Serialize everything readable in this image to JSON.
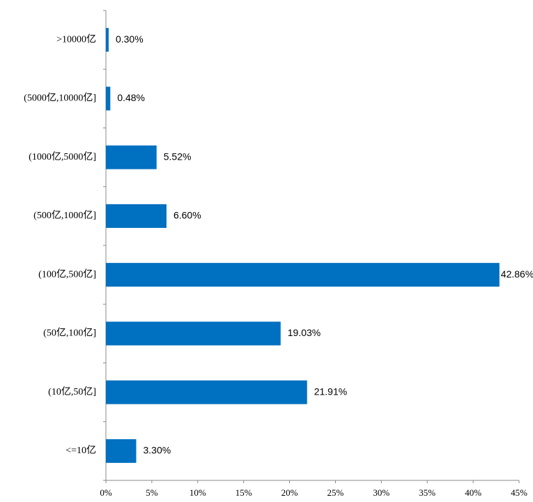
{
  "chart_data": {
    "type": "bar",
    "orientation": "horizontal",
    "categories": [
      ">10000亿",
      "(5000亿,10000亿]",
      "(1000亿,5000亿]",
      "(500亿,1000亿]",
      "(100亿,500亿]",
      "(50亿,100亿]",
      "(10亿,50亿]",
      "<=10亿"
    ],
    "values": [
      0.3,
      0.48,
      5.52,
      6.6,
      42.86,
      19.03,
      21.91,
      3.3
    ],
    "value_labels": [
      "0.30%",
      "0.48%",
      "5.52%",
      "6.60%",
      "42.86%",
      "19.03%",
      "21.91%",
      "3.30%"
    ],
    "color": "#0070c0",
    "xlim": [
      0,
      45
    ],
    "xticks": [
      {
        "value": 0,
        "label": "0%"
      },
      {
        "value": 5,
        "label": "5%"
      },
      {
        "value": 10,
        "label": "10%"
      },
      {
        "value": 15,
        "label": "15%"
      },
      {
        "value": 20,
        "label": "20%"
      },
      {
        "value": 25,
        "label": "25%"
      },
      {
        "value": 30,
        "label": "30%"
      },
      {
        "value": 35,
        "label": "35%"
      },
      {
        "value": 40,
        "label": "40%"
      },
      {
        "value": 45,
        "label": "45%"
      }
    ],
    "grid": false
  }
}
